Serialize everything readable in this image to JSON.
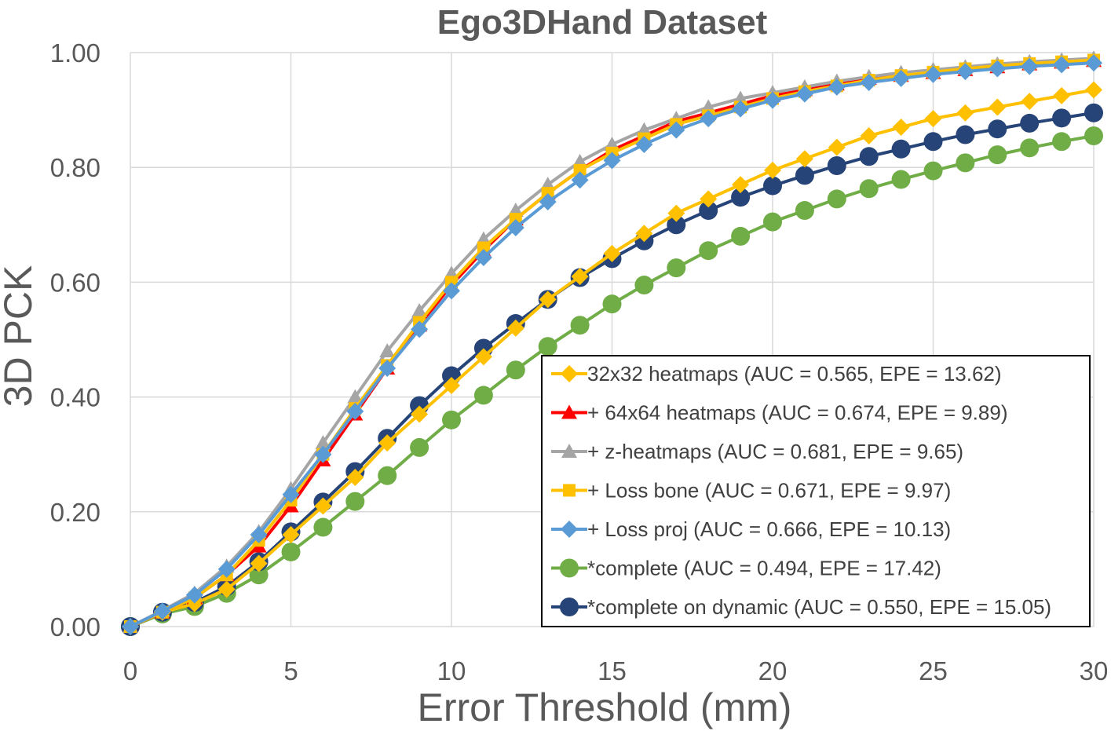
{
  "chart_data": {
    "type": "line",
    "title": "Ego3DHand Dataset",
    "xlabel": "Error Threshold (mm)",
    "ylabel": "3D PCK",
    "xlim": [
      0,
      30
    ],
    "ylim": [
      0,
      1
    ],
    "x_ticks": [
      "0",
      "5",
      "10",
      "15",
      "20",
      "25",
      "30"
    ],
    "y_ticks": [
      "0.00",
      "0.20",
      "0.40",
      "0.60",
      "0.80",
      "1.00"
    ],
    "grid": "vertical and horizontal major gridlines",
    "legend_position": "bottom-right inside plot",
    "x": [
      0,
      1,
      2,
      3,
      4,
      5,
      6,
      7,
      8,
      9,
      10,
      11,
      12,
      13,
      14,
      15,
      16,
      17,
      18,
      19,
      20,
      21,
      22,
      23,
      24,
      25,
      26,
      27,
      28,
      29,
      30
    ],
    "series": [
      {
        "name": "32x32 heatmaps (AUC = 0.565, EPE = 13.62)",
        "color": "#ffc000",
        "marker": "diamond",
        "values": [
          0.0,
          0.025,
          0.04,
          0.065,
          0.11,
          0.16,
          0.21,
          0.26,
          0.32,
          0.37,
          0.42,
          0.47,
          0.52,
          0.57,
          0.61,
          0.65,
          0.685,
          0.72,
          0.745,
          0.77,
          0.795,
          0.815,
          0.835,
          0.855,
          0.87,
          0.885,
          0.895,
          0.905,
          0.915,
          0.925,
          0.935
        ]
      },
      {
        "name": "+ 64x64 heatmaps (AUC = 0.674, EPE = 9.89)",
        "color": "#ff0000",
        "marker": "triangle",
        "values": [
          0.0,
          0.025,
          0.05,
          0.09,
          0.14,
          0.21,
          0.29,
          0.37,
          0.45,
          0.525,
          0.595,
          0.655,
          0.71,
          0.755,
          0.795,
          0.83,
          0.855,
          0.88,
          0.895,
          0.91,
          0.925,
          0.935,
          0.945,
          0.955,
          0.96,
          0.965,
          0.97,
          0.975,
          0.98,
          0.983,
          0.986
        ]
      },
      {
        "name": "+ z-heatmaps (AUC = 0.681, EPE = 9.65)",
        "color": "#a5a5a5",
        "marker": "triangle",
        "values": [
          0.0,
          0.028,
          0.058,
          0.105,
          0.165,
          0.24,
          0.32,
          0.4,
          0.48,
          0.55,
          0.615,
          0.675,
          0.725,
          0.77,
          0.81,
          0.84,
          0.865,
          0.885,
          0.905,
          0.92,
          0.93,
          0.94,
          0.95,
          0.958,
          0.965,
          0.97,
          0.975,
          0.98,
          0.984,
          0.987,
          0.99
        ]
      },
      {
        "name": "+ Loss bone (AUC = 0.671, EPE = 9.97)",
        "color": "#ffc000",
        "marker": "square",
        "values": [
          0.0,
          0.025,
          0.05,
          0.09,
          0.15,
          0.22,
          0.3,
          0.38,
          0.455,
          0.53,
          0.6,
          0.66,
          0.71,
          0.755,
          0.795,
          0.825,
          0.85,
          0.875,
          0.89,
          0.905,
          0.92,
          0.932,
          0.942,
          0.952,
          0.96,
          0.966,
          0.972,
          0.977,
          0.981,
          0.984,
          0.987
        ]
      },
      {
        "name": "+ Loss proj (AUC = 0.666, EPE = 10.13)",
        "color": "#5b9bd5",
        "marker": "diamond",
        "values": [
          0.0,
          0.027,
          0.055,
          0.1,
          0.16,
          0.23,
          0.3,
          0.375,
          0.45,
          0.518,
          0.585,
          0.643,
          0.695,
          0.74,
          0.778,
          0.812,
          0.84,
          0.865,
          0.885,
          0.902,
          0.917,
          0.928,
          0.94,
          0.948,
          0.955,
          0.962,
          0.967,
          0.972,
          0.976,
          0.979,
          0.982
        ]
      },
      {
        "name": "*complete (AUC = 0.494, EPE = 17.42)",
        "color": "#70ad47",
        "marker": "circle",
        "values": [
          0.0,
          0.022,
          0.035,
          0.058,
          0.09,
          0.13,
          0.173,
          0.218,
          0.263,
          0.312,
          0.36,
          0.403,
          0.447,
          0.488,
          0.525,
          0.562,
          0.595,
          0.625,
          0.655,
          0.68,
          0.705,
          0.725,
          0.745,
          0.763,
          0.779,
          0.794,
          0.808,
          0.822,
          0.834,
          0.845,
          0.855
        ]
      },
      {
        "name": "*complete on dynamic (AUC = 0.550, EPE = 15.05)",
        "color": "#264478",
        "marker": "circle",
        "values": [
          0.0,
          0.025,
          0.042,
          0.07,
          0.113,
          0.165,
          0.217,
          0.27,
          0.328,
          0.385,
          0.437,
          0.485,
          0.528,
          0.57,
          0.608,
          0.641,
          0.672,
          0.7,
          0.725,
          0.748,
          0.768,
          0.786,
          0.803,
          0.819,
          0.832,
          0.845,
          0.857,
          0.867,
          0.877,
          0.886,
          0.895
        ]
      }
    ]
  }
}
